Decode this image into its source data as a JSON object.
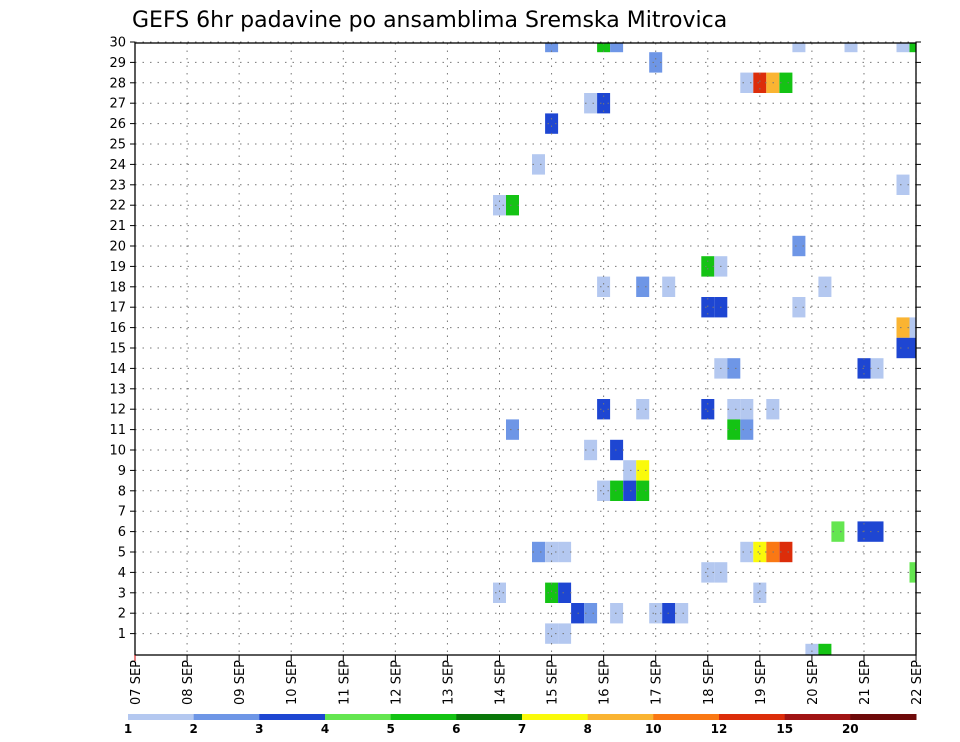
{
  "chart_data": {
    "type": "heatmap",
    "title": "GEFS 6hr padavine po ansamblima Sremska Mitrovica",
    "y_labels": [
      "1",
      "2",
      "3",
      "4",
      "5",
      "6",
      "7",
      "8",
      "9",
      "10",
      "11",
      "12",
      "13",
      "14",
      "15",
      "16",
      "17",
      "18",
      "19",
      "20",
      "21",
      "22",
      "23",
      "24",
      "25",
      "26",
      "27",
      "28",
      "29",
      "30"
    ],
    "x_labels": [
      "07 SEP",
      "08 SEP",
      "09 SEP",
      "10 SEP",
      "11 SEP",
      "12 SEP",
      "13 SEP",
      "14 SEP",
      "15 SEP",
      "16 SEP",
      "17 SEP",
      "18 SEP",
      "19 SEP",
      "20 SEP",
      "21 SEP",
      "22 SEP"
    ],
    "colorbar_labels": [
      "1",
      "2",
      "3",
      "4",
      "5",
      "6",
      "7",
      "8",
      "10",
      "12",
      "15",
      "20"
    ],
    "colors": [
      "#b4c8f0",
      "#6e96e6",
      "#1e46d2",
      "#64e650",
      "#14c314",
      "#0a780a",
      "#fafa0a",
      "#fab432",
      "#fa7814",
      "#dc2d0a",
      "#a01414",
      "#6e0a0a"
    ],
    "grid": true,
    "cells": [
      [
        30,
        15.0,
        1
      ],
      [
        30,
        16.0,
        4
      ],
      [
        30,
        16.25,
        1
      ],
      [
        30,
        19.75,
        0
      ],
      [
        30,
        20.75,
        0
      ],
      [
        30,
        21.75,
        0
      ],
      [
        30,
        22.0,
        4
      ],
      [
        29,
        17.0,
        1
      ],
      [
        28,
        18.75,
        0
      ],
      [
        28,
        19.0,
        9
      ],
      [
        28,
        19.25,
        7
      ],
      [
        28,
        19.5,
        4
      ],
      [
        27,
        15.75,
        0
      ],
      [
        27,
        16.0,
        2
      ],
      [
        26,
        15.0,
        2
      ],
      [
        24,
        14.75,
        0
      ],
      [
        23,
        21.75,
        0
      ],
      [
        22,
        14.0,
        0
      ],
      [
        22,
        14.25,
        4
      ],
      [
        20,
        19.75,
        1
      ],
      [
        19,
        18.0,
        4
      ],
      [
        19,
        18.25,
        0
      ],
      [
        18,
        16.0,
        0
      ],
      [
        18,
        16.75,
        1
      ],
      [
        18,
        17.25,
        0
      ],
      [
        18,
        20.25,
        0
      ],
      [
        17,
        18.0,
        2
      ],
      [
        17,
        18.25,
        2
      ],
      [
        17,
        19.75,
        0
      ],
      [
        16,
        21.75,
        7
      ],
      [
        16,
        22.0,
        0
      ],
      [
        15,
        21.75,
        2
      ],
      [
        15,
        22.0,
        2
      ],
      [
        14,
        18.25,
        0
      ],
      [
        14,
        18.5,
        1
      ],
      [
        14,
        21.0,
        2
      ],
      [
        14,
        21.25,
        0
      ],
      [
        12,
        16.0,
        2
      ],
      [
        12,
        16.75,
        0
      ],
      [
        12,
        18.0,
        2
      ],
      [
        12,
        18.5,
        0
      ],
      [
        12,
        18.75,
        0
      ],
      [
        12,
        19.25,
        0
      ],
      [
        11,
        14.25,
        1
      ],
      [
        11,
        18.5,
        4
      ],
      [
        11,
        18.75,
        1
      ],
      [
        10,
        15.75,
        0
      ],
      [
        10,
        16.25,
        2
      ],
      [
        9,
        16.5,
        0
      ],
      [
        9,
        16.75,
        6
      ],
      [
        8,
        16.0,
        0
      ],
      [
        8,
        16.25,
        4
      ],
      [
        8,
        16.5,
        2
      ],
      [
        8,
        16.75,
        4
      ],
      [
        6,
        20.5,
        3
      ],
      [
        6,
        21.0,
        2
      ],
      [
        6,
        21.25,
        2
      ],
      [
        5,
        14.75,
        1
      ],
      [
        5,
        15.0,
        0
      ],
      [
        5,
        15.25,
        0
      ],
      [
        5,
        18.75,
        0
      ],
      [
        5,
        19.0,
        6
      ],
      [
        5,
        19.25,
        8
      ],
      [
        5,
        19.5,
        9
      ],
      [
        4,
        18.0,
        0
      ],
      [
        4,
        18.25,
        0
      ],
      [
        4,
        22.0,
        3
      ],
      [
        3,
        14.0,
        0
      ],
      [
        3,
        15.0,
        4
      ],
      [
        3,
        15.25,
        2
      ],
      [
        3,
        19.0,
        0
      ],
      [
        2,
        15.5,
        2
      ],
      [
        2,
        15.75,
        1
      ],
      [
        2,
        16.25,
        0
      ],
      [
        2,
        17.0,
        0
      ],
      [
        2,
        17.25,
        2
      ],
      [
        2,
        17.5,
        0
      ],
      [
        1,
        15.0,
        0
      ],
      [
        1,
        15.25,
        0
      ],
      [
        0,
        20.0,
        0
      ],
      [
        0,
        20.25,
        4
      ]
    ]
  }
}
